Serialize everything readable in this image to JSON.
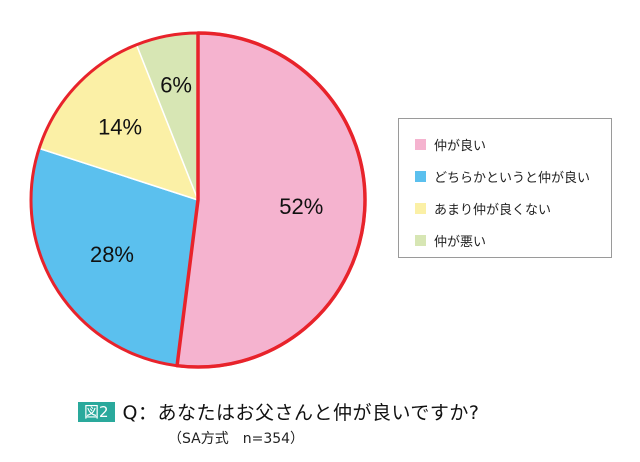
{
  "chart_data": {
    "type": "pie",
    "categories": [
      "仲が良い",
      "どちらかというと仲が良い",
      "あまり仲が良くない",
      "仲が悪い"
    ],
    "values": [
      52,
      28,
      14,
      6
    ],
    "labels": [
      "52%",
      "28%",
      "14%",
      "6%"
    ],
    "colors": [
      "#f5b3cf",
      "#5bc0ee",
      "#fbf0a6",
      "#d7e6b4"
    ],
    "highlight_color": "#e8232b",
    "legend_position": "right"
  },
  "caption": {
    "badge": "図2",
    "question": "Q：あなたはお父さんと仲が良いですか?",
    "note": "（SA方式　n=354）"
  }
}
